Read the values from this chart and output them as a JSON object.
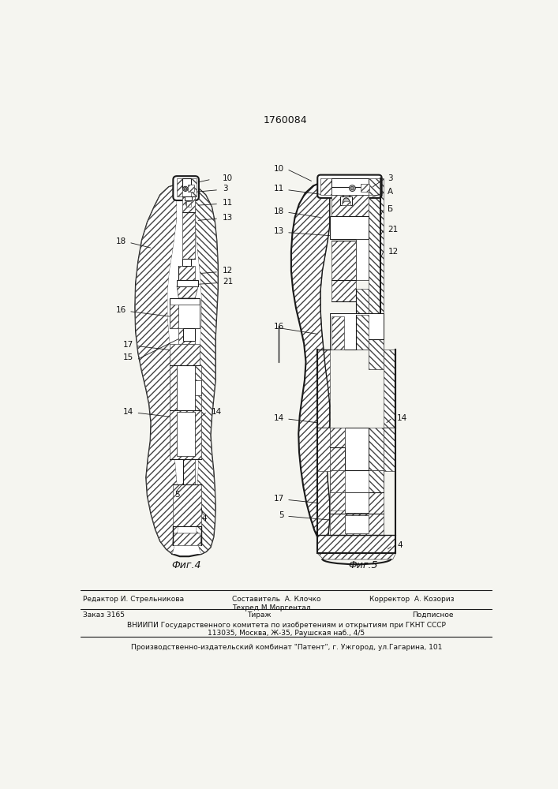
{
  "patent_number": "1760084",
  "bg_color": "#f5f5f0",
  "fig4_caption": "Фиг.4",
  "fig5_caption": "Фиг.5",
  "footer_line1_left": "Редактор И. Стрельникова",
  "footer_line1_mid": "Составитель  А. Клочко\nТехред М.Моргентал",
  "footer_line1_right": "Корректор  А. Козориз",
  "footer_line2_left": "Заказ 3165",
  "footer_line2_mid": "Тираж",
  "footer_line2_right": "Подписное",
  "footer_line3": "ВНИИПИ Государственного комитета по изобретениям и открытиям при ГКНТ СССР",
  "footer_line4": "113035, Москва, Ж-35, Раушская наб., 4/5",
  "footer_line5": "Производственно-издательский комбинат \"Патент\", г. Ужгород, ул.Гагарина, 101",
  "hatch_color": "#444444",
  "line_color": "#1a1a1a"
}
